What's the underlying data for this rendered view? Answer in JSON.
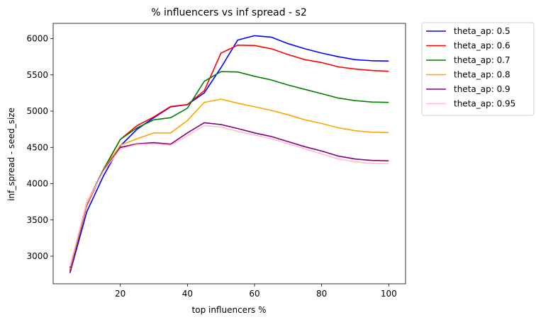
{
  "chart_data": {
    "type": "line",
    "title": "% influencers vs inf spread - s2",
    "xlabel": "top influencers %",
    "ylabel": "inf_spread - seed_size",
    "xlim": [
      0,
      105
    ],
    "ylim": [
      2620,
      6210
    ],
    "xticks": [
      20,
      40,
      60,
      80,
      100
    ],
    "yticks": [
      3000,
      3500,
      4000,
      4500,
      5000,
      5500,
      6000
    ],
    "x": [
      5,
      10,
      15,
      20,
      25,
      30,
      35,
      40,
      45,
      50,
      55,
      60,
      65,
      70,
      75,
      80,
      85,
      90,
      95,
      100
    ],
    "legend_position": "outside upper right",
    "grid": false,
    "series": [
      {
        "name": "theta_ap: 0.5",
        "color": "#0000ff",
        "values": [
          2770,
          3610,
          4110,
          4520,
          4750,
          4910,
          5060,
          5090,
          5250,
          5600,
          5980,
          6040,
          6020,
          5930,
          5860,
          5800,
          5750,
          5710,
          5695,
          5690
        ]
      },
      {
        "name": "theta_ap: 0.6",
        "color": "#ff0000",
        "values": [
          2800,
          3700,
          4190,
          4610,
          4800,
          4920,
          5065,
          5090,
          5280,
          5800,
          5910,
          5905,
          5860,
          5780,
          5710,
          5670,
          5610,
          5580,
          5560,
          5550
        ]
      },
      {
        "name": "theta_ap: 0.7",
        "color": "#008000",
        "values": [
          2820,
          3730,
          4200,
          4610,
          4770,
          4880,
          4910,
          5040,
          5410,
          5545,
          5540,
          5480,
          5430,
          5360,
          5300,
          5240,
          5180,
          5145,
          5125,
          5120
        ]
      },
      {
        "name": "theta_ap: 0.8",
        "color": "#ffa500",
        "values": [
          2820,
          3720,
          4190,
          4530,
          4620,
          4700,
          4700,
          4870,
          5120,
          5165,
          5110,
          5060,
          5010,
          4950,
          4880,
          4830,
          4770,
          4730,
          4710,
          4705
        ]
      },
      {
        "name": "theta_ap: 0.9",
        "color": "#800080",
        "values": [
          2840,
          3740,
          4180,
          4500,
          4550,
          4565,
          4545,
          4700,
          4840,
          4815,
          4760,
          4700,
          4650,
          4580,
          4510,
          4450,
          4380,
          4340,
          4320,
          4315
        ]
      },
      {
        "name": "theta_ap: 0.95",
        "color": "#ffc0cb",
        "values": [
          2860,
          3740,
          4170,
          4480,
          4540,
          4550,
          4530,
          4660,
          4800,
          4780,
          4720,
          4670,
          4620,
          4550,
          4480,
          4410,
          4340,
          4300,
          4280,
          4275
        ]
      }
    ]
  }
}
